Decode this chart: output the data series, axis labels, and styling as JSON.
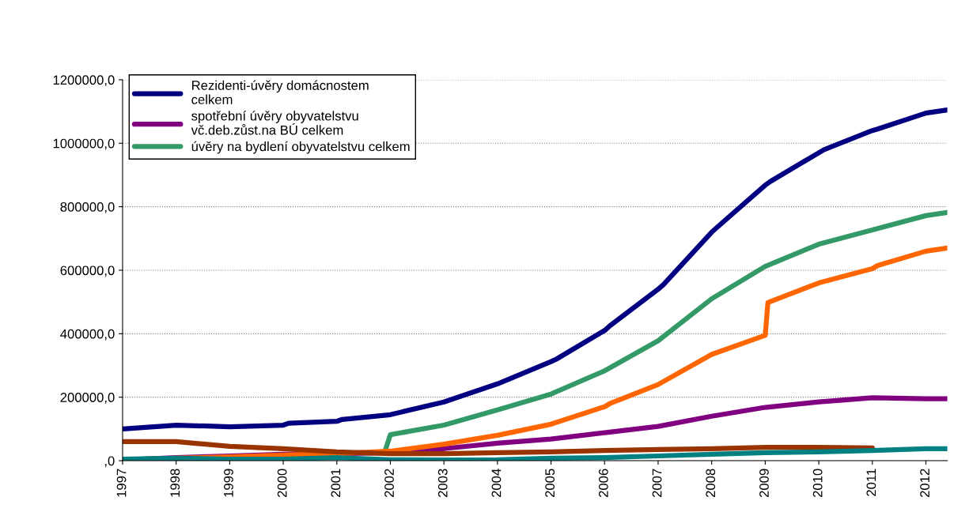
{
  "chart_data": {
    "type": "line",
    "legend": "top left",
    "grid": "y",
    "marker": "none",
    "line_style": "solid",
    "xlim": [
      1997,
      2012.4
    ],
    "xticks": [
      1997,
      1998,
      1999,
      2000,
      2001,
      2002,
      2003,
      2004,
      2005,
      2006,
      2007,
      2008,
      2009,
      2010,
      2011,
      2012
    ],
    "ylim": [
      0,
      1200000
    ],
    "yticks": [
      {
        "value": 0,
        "label": ",0"
      },
      {
        "value": 200000,
        "label": "200000,0"
      },
      {
        "value": 400000,
        "label": "400000,0"
      },
      {
        "value": 600000,
        "label": "600000,0"
      },
      {
        "value": 800000,
        "label": "800000,0"
      },
      {
        "value": 1000000,
        "label": "1000000,0"
      },
      {
        "value": 1200000,
        "label": "1200000,0"
      }
    ],
    "series": [
      {
        "name": "Rezidenti-úvěry domácnostem\ncelkem",
        "color": "#000080",
        "x": [
          1997,
          1998,
          1999,
          2000,
          2000.1,
          2001,
          2001.1,
          2002,
          2003,
          2004,
          2005,
          2005.1,
          2006,
          2006.1,
          2007,
          2007.1,
          2008,
          2008.1,
          2009,
          2009.1,
          2010,
          2010.1,
          2011,
          2011.1,
          2012,
          2012.4
        ],
        "values": [
          100000,
          112000,
          107000,
          112000,
          118000,
          124000,
          130000,
          145000,
          185000,
          242000,
          312000,
          320000,
          410000,
          425000,
          540000,
          555000,
          720000,
          735000,
          868000,
          880000,
          970000,
          980000,
          1040000,
          1045000,
          1095000,
          1105000
        ]
      },
      {
        "name": "spotřební úvěry obyvatelstvu\nvč.deb.zůst.na BÚ celkem",
        "color": "#800080",
        "x": [
          1997,
          1998,
          1999,
          2000,
          2001,
          2002,
          2003,
          2004,
          2005,
          2006,
          2007,
          2008,
          2009,
          2010,
          2011,
          2012,
          2012.4
        ],
        "values": [
          2000,
          10000,
          15000,
          20000,
          22000,
          25000,
          38000,
          55000,
          68000,
          88000,
          108000,
          140000,
          168000,
          185000,
          198000,
          195000,
          195000
        ]
      },
      {
        "name": "úvěry na bydlení obyvatelstvu celkem",
        "color": "#339966",
        "x": [
          2001.9,
          2002,
          2003,
          2004,
          2005,
          2006,
          2007,
          2008,
          2009,
          2010,
          2011,
          2012,
          2012.4
        ],
        "values": [
          30000,
          82000,
          112000,
          160000,
          210000,
          283000,
          378000,
          510000,
          612000,
          682000,
          727000,
          772000,
          782000
        ]
      },
      {
        "color": "#ff6600",
        "x": [
          1997,
          1998,
          1999,
          2000,
          2001,
          2002,
          2003,
          2004,
          2005,
          2006,
          2006.1,
          2007,
          2008,
          2009,
          2009.05,
          2010,
          2011,
          2011.1,
          2012,
          2012.4
        ],
        "values": [
          2000,
          8000,
          12000,
          18000,
          22000,
          30000,
          52000,
          80000,
          115000,
          170000,
          180000,
          240000,
          335000,
          395000,
          498000,
          560000,
          605000,
          615000,
          660000,
          670000
        ]
      },
      {
        "color": "#993300",
        "x": [
          1997,
          1998,
          1999,
          2000,
          2001,
          2002,
          2003,
          2004,
          2005,
          2006,
          2007,
          2008,
          2009,
          2010,
          2011
        ],
        "values": [
          60000,
          60000,
          45000,
          38000,
          28000,
          22000,
          22000,
          25000,
          28000,
          32000,
          35000,
          38000,
          42000,
          42000,
          40000
        ]
      },
      {
        "color": "#008080",
        "x": [
          1997,
          1998,
          1999,
          2000,
          2001,
          2002,
          2003,
          2004,
          2005,
          2006,
          2007,
          2008,
          2009,
          2010,
          2011,
          2012,
          2012.4
        ],
        "values": [
          5000,
          8000,
          5000,
          5000,
          10000,
          3000,
          2000,
          3000,
          8000,
          10000,
          15000,
          20000,
          25000,
          28000,
          32000,
          38000,
          38000
        ]
      }
    ]
  }
}
